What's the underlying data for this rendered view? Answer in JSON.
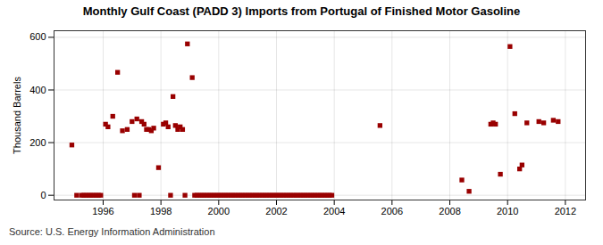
{
  "chart_data": {
    "type": "scatter",
    "title": "Monthly Gulf Coast (PADD 3) Imports from Portugal of Finished Motor Gasoline",
    "ylabel": "Thousand Barrels",
    "annotations": [
      "Source: U.S. Energy Information Administration"
    ],
    "color": "#990000",
    "marker": "square",
    "grid": true,
    "xlim": [
      1994.3,
      2012.7
    ],
    "ylim": [
      -18,
      625
    ],
    "xticks": [
      1996,
      1998,
      2000,
      2002,
      2004,
      2006,
      2008,
      2010,
      2012
    ],
    "yticks": [
      0,
      200,
      400,
      600
    ],
    "x": [
      1994.917,
      1995.083,
      1995.25,
      1995.333,
      1995.417,
      1995.5,
      1995.583,
      1995.667,
      1995.75,
      1995.833,
      1995.917,
      1996.083,
      1996.167,
      1996.333,
      1996.5,
      1996.667,
      1996.833,
      1997.0,
      1997.083,
      1997.167,
      1997.25,
      1997.333,
      1997.417,
      1997.5,
      1997.583,
      1997.667,
      1997.75,
      1997.917,
      1998.083,
      1998.167,
      1998.25,
      1998.333,
      1998.417,
      1998.5,
      1998.583,
      1998.667,
      1998.75,
      1998.833,
      1998.917,
      1999.083,
      1999.167,
      1999.25,
      1999.333,
      1999.417,
      1999.5,
      1999.583,
      1999.667,
      1999.75,
      1999.833,
      1999.917,
      2000.0,
      2000.083,
      2000.167,
      2000.25,
      2000.333,
      2000.417,
      2000.5,
      2000.583,
      2000.667,
      2000.75,
      2000.833,
      2000.917,
      2001.0,
      2001.083,
      2001.167,
      2001.25,
      2001.333,
      2001.417,
      2001.5,
      2001.583,
      2001.667,
      2001.75,
      2001.833,
      2001.917,
      2002.0,
      2002.083,
      2002.167,
      2002.25,
      2002.333,
      2002.417,
      2002.5,
      2002.583,
      2002.667,
      2002.75,
      2002.833,
      2002.917,
      2003.0,
      2003.083,
      2003.167,
      2003.25,
      2003.333,
      2003.417,
      2003.5,
      2003.583,
      2003.667,
      2003.75,
      2003.833,
      2003.917,
      2005.583,
      2008.417,
      2008.667,
      2009.417,
      2009.5,
      2009.583,
      2009.75,
      2010.083,
      2010.25,
      2010.417,
      2010.5,
      2010.667,
      2011.083,
      2011.25,
      2011.583,
      2011.75
    ],
    "values": [
      191,
      0,
      0,
      0,
      0,
      0,
      0,
      0,
      0,
      0,
      0,
      270,
      260,
      300,
      467,
      245,
      250,
      280,
      0,
      290,
      0,
      280,
      270,
      250,
      250,
      245,
      255,
      105,
      270,
      275,
      260,
      0,
      375,
      265,
      250,
      260,
      250,
      0,
      575,
      447,
      0,
      0,
      0,
      0,
      0,
      0,
      0,
      0,
      0,
      0,
      0,
      0,
      0,
      0,
      0,
      0,
      0,
      0,
      0,
      0,
      0,
      0,
      0,
      0,
      0,
      0,
      0,
      0,
      0,
      0,
      0,
      0,
      0,
      0,
      0,
      0,
      0,
      0,
      0,
      0,
      0,
      0,
      0,
      0,
      0,
      0,
      0,
      0,
      0,
      0,
      0,
      0,
      0,
      0,
      0,
      0,
      0,
      0,
      265,
      58,
      15,
      270,
      275,
      270,
      80,
      565,
      310,
      100,
      115,
      275,
      280,
      275,
      285,
      280
    ]
  }
}
